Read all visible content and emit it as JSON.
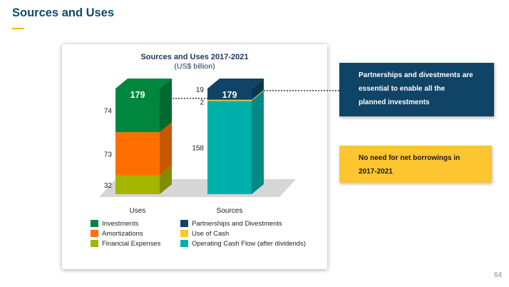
{
  "header": {
    "title": "Sources and Uses",
    "accent_color": "#f5b400"
  },
  "chart_data": {
    "type": "bar",
    "stacked": true,
    "title": "Sources and Uses 2017-2021",
    "subtitle": "(US$ billion)",
    "categories": [
      "Uses",
      "Sources"
    ],
    "series": [
      {
        "name": "Financial Expenses",
        "stack": "Uses",
        "values": [
          32,
          0
        ],
        "color": "#a5b500"
      },
      {
        "name": "Amortizations",
        "stack": "Uses",
        "values": [
          73,
          0
        ],
        "color": "#ff6f00"
      },
      {
        "name": "Investments",
        "stack": "Uses",
        "values": [
          74,
          0
        ],
        "color": "#00873e"
      },
      {
        "name": "Operating Cash Flow (after dividends)",
        "stack": "Sources",
        "values": [
          0,
          158
        ],
        "color": "#00b0aa"
      },
      {
        "name": "Use of Cash",
        "stack": "Sources",
        "values": [
          0,
          2
        ],
        "color": "#fdc52f"
      },
      {
        "name": "Partnerships and Divestments",
        "stack": "Sources",
        "values": [
          0,
          19
        ],
        "color": "#0f4466"
      }
    ],
    "totals": [
      179,
      179
    ],
    "total_labels": [
      "179",
      "179"
    ],
    "segment_labels": {
      "uses": [
        "32",
        "73",
        "74"
      ],
      "sources": [
        "158",
        "2",
        "19"
      ]
    },
    "legend": [
      {
        "label": "Investments",
        "color": "#00873e"
      },
      {
        "label": "Amortizations",
        "color": "#ff6f00"
      },
      {
        "label": "Financial Expenses",
        "color": "#a5b500"
      },
      {
        "label": "Partnerships and Divestments",
        "color": "#0f4466"
      },
      {
        "label": "Use of Cash",
        "color": "#fdc52f"
      },
      {
        "label": "Operating Cash Flow (after dividends)",
        "color": "#00b0aa"
      }
    ],
    "ylim": [
      0,
      179
    ]
  },
  "callouts": {
    "navy": {
      "line1": "Partnerships and divestments are",
      "line2": "essential to enable all the",
      "line3": "planned investments"
    },
    "yellow": {
      "line1": "No need for net borrowings in",
      "line2": "2017-2021"
    }
  },
  "footer": {
    "page_number": "64"
  }
}
